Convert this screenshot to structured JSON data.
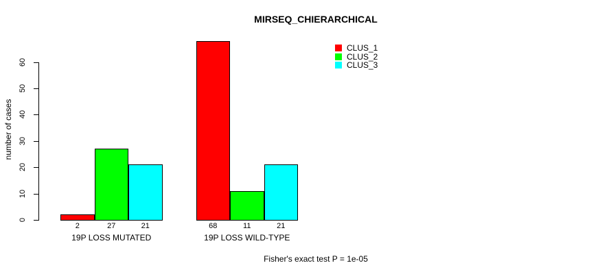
{
  "chart_data": {
    "type": "bar",
    "title": "MIRSEQ_CHIERARCHICAL",
    "xlabel": "",
    "ylabel": "number of cases",
    "categories": [
      "19P LOSS MUTATED",
      "19P LOSS WILD-TYPE"
    ],
    "series": [
      {
        "name": "CLUS_1",
        "color": "#FF0000",
        "values": [
          2,
          68
        ]
      },
      {
        "name": "CLUS_2",
        "color": "#00FF00",
        "values": [
          27,
          11
        ]
      },
      {
        "name": "CLUS_3",
        "color": "#00FFFF",
        "values": [
          21,
          21
        ]
      }
    ],
    "bar_value_labels": [
      [
        "2",
        "27",
        "21"
      ],
      [
        "68",
        "11",
        "21"
      ]
    ],
    "yticks": [
      0,
      10,
      20,
      30,
      40,
      50,
      60
    ],
    "ylim": [
      0,
      60
    ],
    "grid": false,
    "legend_position": "top-right",
    "annotation": "Fisher's exact test P = 1e-05"
  },
  "colors": {
    "background": "#FFFFFF",
    "axis": "#000000",
    "text": "#000000"
  }
}
